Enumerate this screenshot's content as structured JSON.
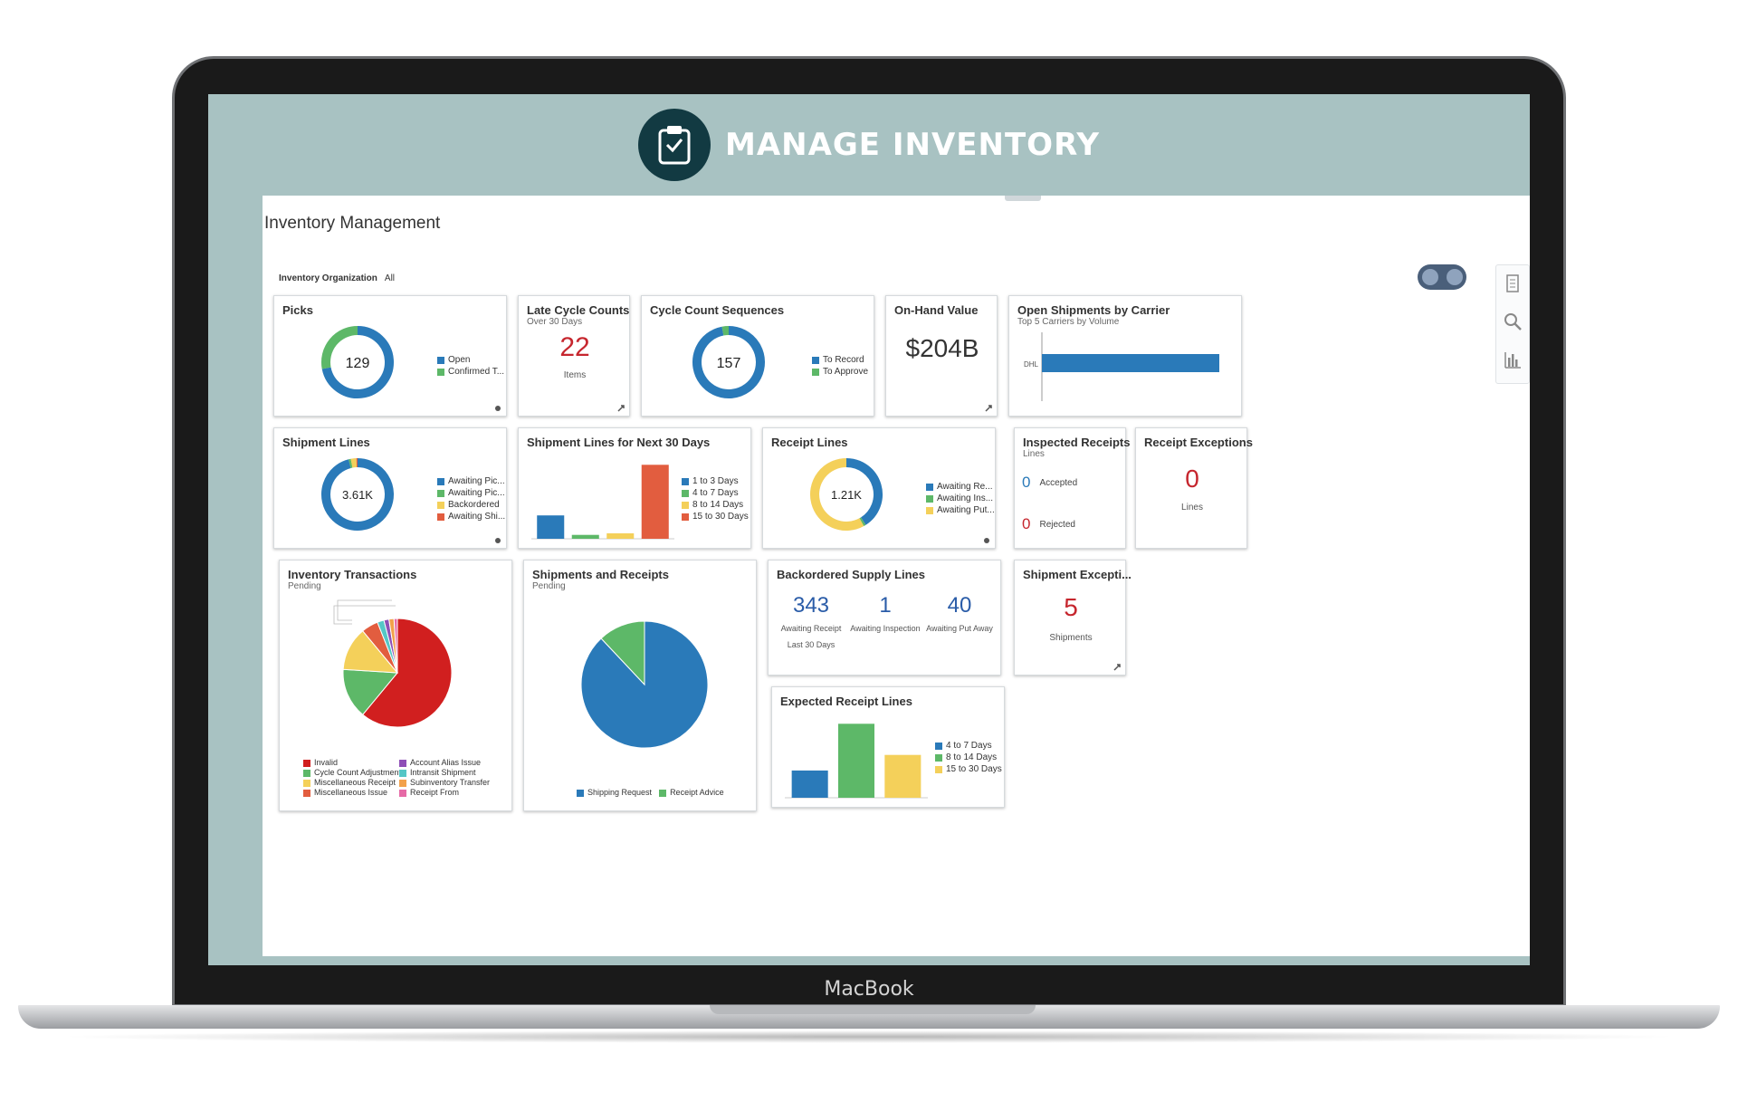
{
  "device": {
    "label": "MacBook"
  },
  "header": {
    "title": "MANAGE INVENTORY",
    "icon": "clipboard-check-icon",
    "bg_color": "#a8c2c2"
  },
  "page": {
    "title": "Inventory Management",
    "org_label": "Inventory Organization",
    "org_value": "All"
  },
  "colors": {
    "blue": "#2a7ab9",
    "green": "#5db868",
    "yellow": "#f4d05a",
    "red": "#e25d3f",
    "dark_red": "#d11f1f",
    "purple": "#8e4fb7",
    "teal": "#55c6c6",
    "orange": "#f2a14b",
    "pink": "#e66aa6"
  },
  "picks": {
    "title": "Picks",
    "total": "129",
    "legend": [
      "Open",
      "Confirmed T..."
    ],
    "chart_data": {
      "type": "pie",
      "labels": [
        "Open",
        "Confirmed T..."
      ],
      "values": [
        72,
        28
      ]
    }
  },
  "late_cycle_counts": {
    "title": "Late Cycle Counts",
    "subtitle": "Over 30 Days",
    "value": "22",
    "caption": "Items"
  },
  "cycle_count_sequences": {
    "title": "Cycle Count Sequences",
    "total": "157",
    "legend": [
      "To Record",
      "To Approve"
    ],
    "chart_data": {
      "type": "pie",
      "labels": [
        "To Record",
        "To Approve"
      ],
      "values": [
        97,
        3
      ]
    }
  },
  "on_hand_value": {
    "title": "On-Hand Value",
    "value": "$204B"
  },
  "open_shipments_by_carrier": {
    "title": "Open Shipments by Carrier",
    "subtitle": "Top 5 Carriers by Volume",
    "chart_data": {
      "type": "bar",
      "orientation": "horizontal",
      "categories": [
        "DHL"
      ],
      "values": [
        1
      ],
      "xlim": [
        0,
        1
      ]
    }
  },
  "shipment_lines": {
    "title": "Shipment Lines",
    "total": "3.61K",
    "legend": [
      "Awaiting Pic...",
      "Awaiting Pic...",
      "Backordered",
      "Awaiting Shi..."
    ],
    "chart_data": {
      "type": "pie",
      "labels": [
        "Awaiting Pic...",
        "Awaiting Pic...",
        "Backordered",
        "Awaiting Shi..."
      ],
      "values": [
        96,
        1,
        2.5,
        0.5
      ]
    }
  },
  "shipment_lines_next_30": {
    "title": "Shipment Lines for Next 30 Days",
    "legend": [
      "1 to 3 Days",
      "4 to 7 Days",
      "8 to 14 Days",
      "15 to 30 Days"
    ],
    "chart_data": {
      "type": "bar",
      "categories": [
        "1 to 3 Days",
        "4 to 7 Days",
        "8 to 14 Days",
        "15 to 30 Days"
      ],
      "values": [
        30,
        5,
        7,
        95
      ],
      "ylim": [
        0,
        100
      ]
    }
  },
  "receipt_lines": {
    "title": "Receipt Lines",
    "total": "1.21K",
    "legend": [
      "Awaiting Re...",
      "Awaiting Ins...",
      "Awaiting Put..."
    ],
    "chart_data": {
      "type": "pie",
      "labels": [
        "Awaiting Re...",
        "Awaiting Ins...",
        "Awaiting Put..."
      ],
      "values": [
        41,
        1,
        58
      ]
    }
  },
  "inspected_receipts": {
    "title": "Inspected Receipts",
    "subtitle": "Lines",
    "accepted_value": "0",
    "accepted_label": "Accepted",
    "rejected_value": "0",
    "rejected_label": "Rejected"
  },
  "receipt_exceptions": {
    "title": "Receipt Exceptions",
    "value": "0",
    "caption": "Lines"
  },
  "inventory_transactions": {
    "title": "Inventory Transactions",
    "subtitle": "Pending",
    "legend": [
      "Invalid",
      "Account Alias Issue",
      "Cycle Count Adjustment",
      "Intransit Shipment",
      "Miscellaneous Receipt",
      "Subinventory Transfer",
      "Miscellaneous Issue",
      "Receipt From"
    ],
    "chart_data": {
      "type": "pie",
      "labels": [
        "Invalid",
        "Cycle Count Adjustment",
        "Miscellaneous Receipt",
        "Miscellaneous Issue",
        "Intransit Shipment",
        "Account Alias Issue",
        "Subinventory Transfer",
        "Receipt From"
      ],
      "values": [
        61,
        15,
        13,
        5,
        2,
        1.5,
        1.5,
        1
      ]
    }
  },
  "shipments_and_receipts": {
    "title": "Shipments and Receipts",
    "subtitle": "Pending",
    "legend": [
      "Shipping Request",
      "Receipt Advice"
    ],
    "chart_data": {
      "type": "pie",
      "labels": [
        "Shipping Request",
        "Receipt Advice"
      ],
      "values": [
        88,
        12
      ]
    }
  },
  "backordered_supply_lines": {
    "title": "Backordered Supply Lines",
    "items": [
      {
        "value": "343",
        "label": "Awaiting Receipt"
      },
      {
        "value": "1",
        "label": "Awaiting Inspection"
      },
      {
        "value": "40",
        "label": "Awaiting Put Away"
      }
    ],
    "footnote": "Last 30 Days"
  },
  "shipment_exceptions": {
    "title": "Shipment Excepti...",
    "value": "5",
    "caption": "Shipments"
  },
  "expected_receipt_lines": {
    "title": "Expected Receipt Lines",
    "legend": [
      "4 to 7 Days",
      "8 to 14 Days",
      "15 to 30 Days"
    ],
    "chart_data": {
      "type": "bar",
      "categories": [
        "4 to 7 Days",
        "8 to 14 Days",
        "15 to 30 Days"
      ],
      "values": [
        35,
        95,
        55
      ],
      "ylim": [
        0,
        100
      ]
    }
  }
}
